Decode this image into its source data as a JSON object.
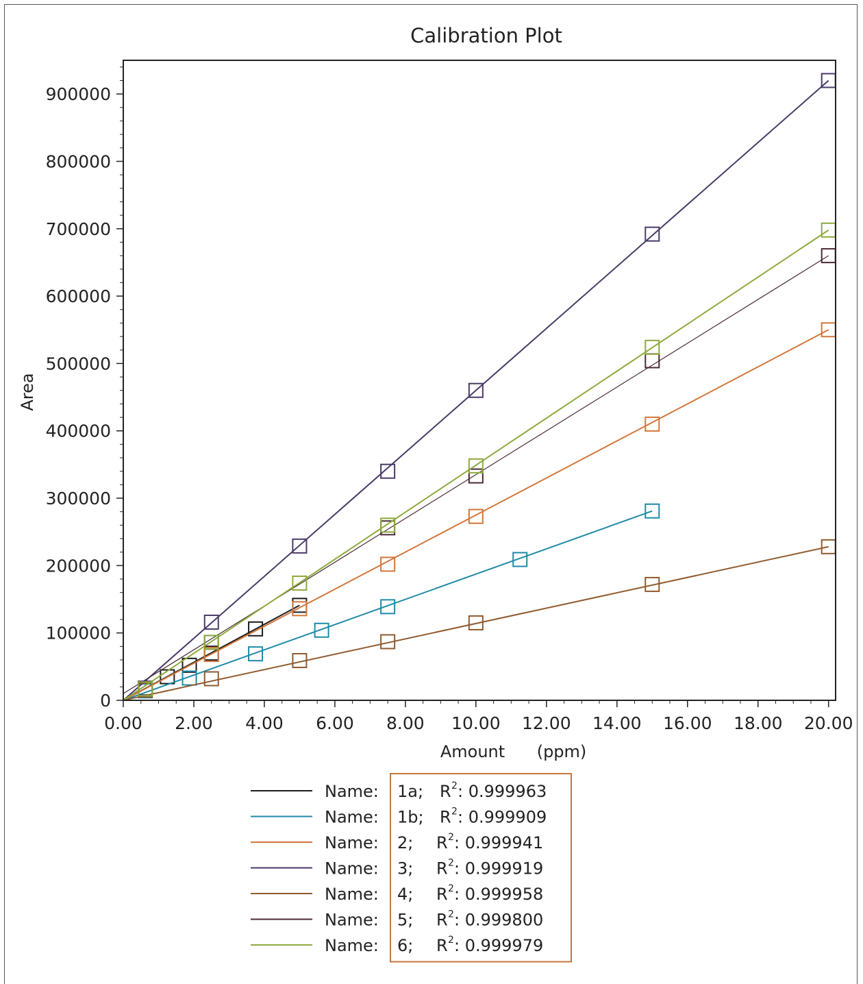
{
  "chart_data": {
    "type": "scatter",
    "title": "Calibration Plot",
    "xlabel": "Amount",
    "xlabel_unit": "(ppm)",
    "ylabel": "Area",
    "xlim": [
      0,
      20.2
    ],
    "ylim": [
      0,
      950000
    ],
    "x_ticks": [
      0,
      2,
      4,
      6,
      8,
      10,
      12,
      14,
      16,
      18,
      20
    ],
    "x_tick_labels": [
      "0.00",
      "2.00",
      "4.00",
      "6.00",
      "8.00",
      "10.00",
      "12.00",
      "14.00",
      "16.00",
      "18.00",
      "20.00"
    ],
    "y_ticks": [
      0,
      100000,
      200000,
      300000,
      400000,
      500000,
      600000,
      700000,
      800000,
      900000
    ],
    "y_tick_labels": [
      "0",
      "100000",
      "200000",
      "300000",
      "400000",
      "500000",
      "600000",
      "700000",
      "800000",
      "900000"
    ],
    "marker": "open-square",
    "grid": false,
    "legend_position": "bottom",
    "series": [
      {
        "name": "1a",
        "r2_label": "R²: 0.999963",
        "color": "#1c1c1c",
        "x": [
          0.625,
          1.25,
          1.875,
          2.5,
          3.75,
          5.0
        ],
        "y": [
          18000,
          35000,
          52000,
          70000,
          106000,
          141000
        ],
        "fit": [
          [
            0,
            0
          ],
          [
            5.0,
            141000
          ]
        ]
      },
      {
        "name": "1b",
        "r2_label": "R²: 0.999909",
        "color": "#1f8aa8",
        "x": [
          0.625,
          1.875,
          3.75,
          5.625,
          7.5,
          11.25,
          15.0
        ],
        "y": [
          14000,
          33000,
          69000,
          104000,
          139000,
          209000,
          281000
        ],
        "fit": [
          [
            0,
            0
          ],
          [
            15.0,
            281000
          ]
        ]
      },
      {
        "name": "2",
        "r2_label": "R²: 0.999941",
        "color": "#d2773a",
        "x": [
          0.625,
          2.5,
          5.0,
          7.5,
          10.0,
          15.0,
          20.0
        ],
        "y": [
          17000,
          68000,
          136000,
          202000,
          273000,
          410000,
          550000
        ],
        "fit": [
          [
            0,
            0
          ],
          [
            20.0,
            550000
          ]
        ]
      },
      {
        "name": "3",
        "r2_label": "R²: 0.999919",
        "color": "#4a3a68",
        "x": [
          0.625,
          2.5,
          5.0,
          7.5,
          10.0,
          15.0,
          20.0
        ],
        "y": [
          18000,
          116000,
          229000,
          340000,
          460000,
          692000,
          920000
        ],
        "fit": [
          [
            0,
            0
          ],
          [
            20.0,
            920000
          ]
        ]
      },
      {
        "name": "4",
        "r2_label": "R²: 0.999958",
        "color": "#8f5a2e",
        "x": [
          0.625,
          2.5,
          5.0,
          7.5,
          10.0,
          15.0,
          20.0
        ],
        "y": [
          15000,
          32000,
          59000,
          87000,
          115000,
          172000,
          228000
        ],
        "fit": [
          [
            0,
            0
          ],
          [
            20.0,
            228000
          ]
        ]
      },
      {
        "name": "5",
        "r2_label": "R²: 0.999800",
        "color": "#4a2a32",
        "x": [
          2.5,
          7.5,
          10.0,
          15.0,
          20.0
        ],
        "y": [
          86000,
          256000,
          333000,
          504000,
          660000
        ],
        "fit": [
          [
            0,
            10000
          ],
          [
            20.0,
            660000
          ]
        ]
      },
      {
        "name": "6",
        "r2_label": "R²: 0.999979",
        "color": "#8caa3e",
        "x": [
          0.625,
          2.5,
          5.0,
          7.5,
          10.0,
          15.0,
          20.0
        ],
        "y": [
          17000,
          86000,
          174000,
          260000,
          348000,
          524000,
          698000
        ],
        "fit": [
          [
            0,
            0
          ],
          [
            20.0,
            698000
          ]
        ]
      }
    ]
  },
  "legend": {
    "name_label": "Name:",
    "box_border_color": "#c8753a",
    "entries": [
      {
        "id": "1a;",
        "r2": "R",
        "r2_sup": "2",
        "r2_value": ": 0.999963"
      },
      {
        "id": "1b;",
        "r2": "R",
        "r2_sup": "2",
        "r2_value": ": 0.999909"
      },
      {
        "id": "2;",
        "r2": "R",
        "r2_sup": "2",
        "r2_value": ": 0.999941"
      },
      {
        "id": "3;",
        "r2": "R",
        "r2_sup": "2",
        "r2_value": ": 0.999919"
      },
      {
        "id": "4;",
        "r2": "R",
        "r2_sup": "2",
        "r2_value": ": 0.999958"
      },
      {
        "id": "5;",
        "r2": "R",
        "r2_sup": "2",
        "r2_value": ": 0.999800"
      },
      {
        "id": "6;",
        "r2": "R",
        "r2_sup": "2",
        "r2_value": ": 0.999979"
      }
    ]
  }
}
